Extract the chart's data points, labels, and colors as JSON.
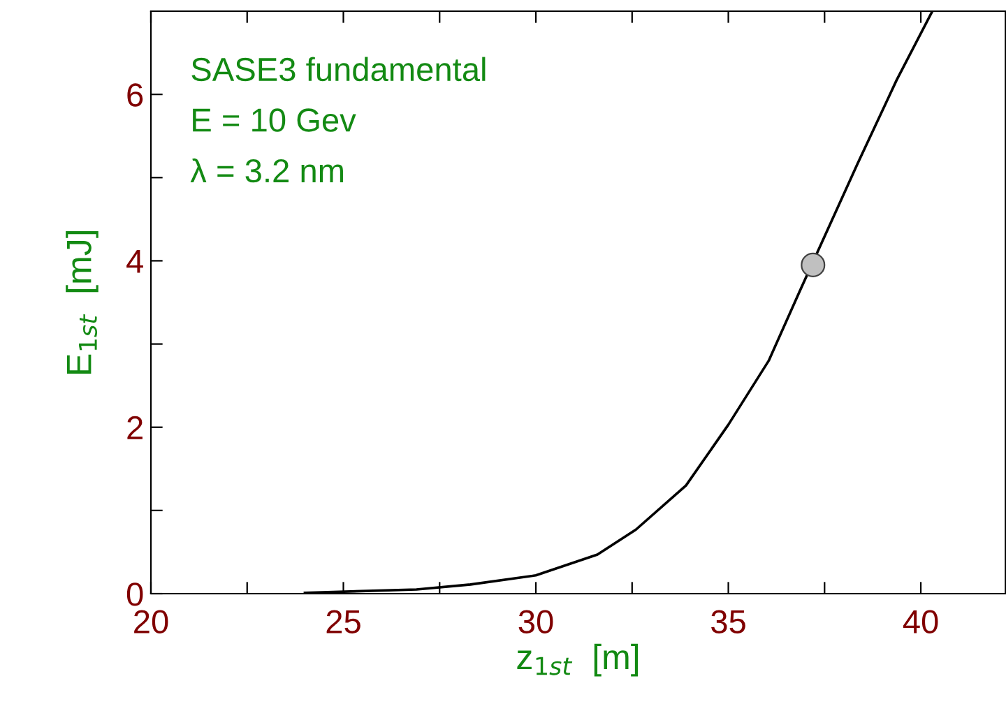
{
  "chart_data": {
    "type": "line",
    "xlabel": "z$_{1st}$  [m]",
    "ylabel": "E$_{1st}$  [mJ]",
    "xlim": [
      20,
      42.2
    ],
    "ylim": [
      0,
      7
    ],
    "xticks": [
      20,
      {
        "value": 22.5,
        "label": null
      },
      25,
      {
        "value": 27.5,
        "label": null
      },
      30,
      {
        "value": 32.5,
        "label": null
      },
      35,
      {
        "value": 37.5,
        "label": null
      },
      40
    ],
    "yticks": [
      0,
      {
        "value": 1,
        "label": null
      },
      2,
      {
        "value": 3,
        "label": null
      },
      4,
      {
        "value": 5,
        "label": null
      },
      6
    ],
    "grid": false,
    "legend": false,
    "annotations": [
      "SASE3 fundamental",
      "E = 10 Gev",
      "λ = 3.2 nm"
    ],
    "series": [
      {
        "color": "#000000",
        "x": [
          24,
          26.9,
          28.3,
          30,
          31.6,
          32.6,
          33.9,
          35,
          36.05,
          36.85,
          38.36,
          39.37,
          40.3
        ],
        "values": [
          0.01,
          0.05,
          0.11,
          0.22,
          0.47,
          0.77,
          1.3,
          2.03,
          2.8,
          3.63,
          5.17,
          6.17,
          7.0
        ]
      },
      {
        "type": "scatter",
        "color": "#c0c0c0",
        "marker": "circle",
        "x": [
          37.2
        ],
        "values": [
          3.95
        ]
      }
    ]
  }
}
